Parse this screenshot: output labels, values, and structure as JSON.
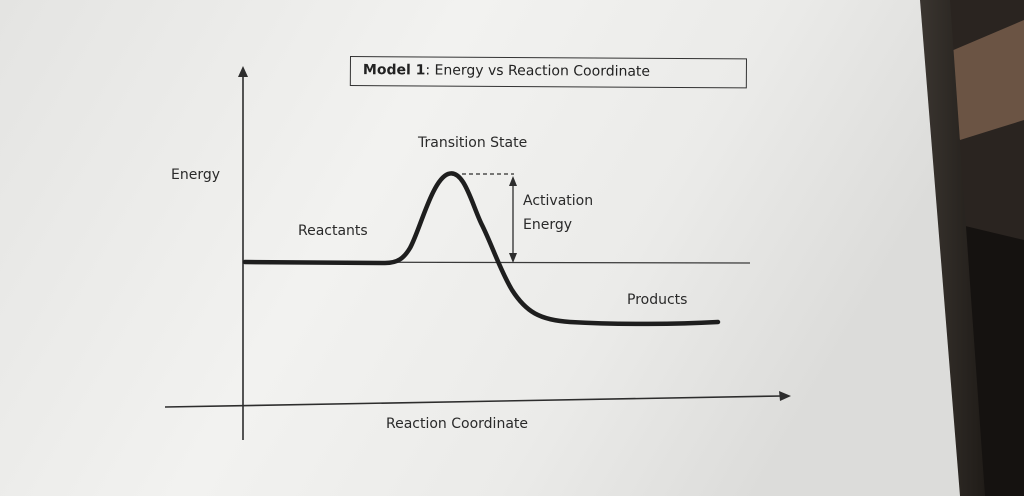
{
  "diagram": {
    "title_bold": "Model 1",
    "title_rest": ": Energy vs Reaction Coordinate",
    "y_axis_label": "Energy",
    "x_axis_label": "Reaction Coordinate",
    "labels": {
      "transition_state": "Transition State",
      "activation_line1": "Activation",
      "activation_line2": "Energy",
      "reactants": "Reactants",
      "products": "Products"
    }
  }
}
